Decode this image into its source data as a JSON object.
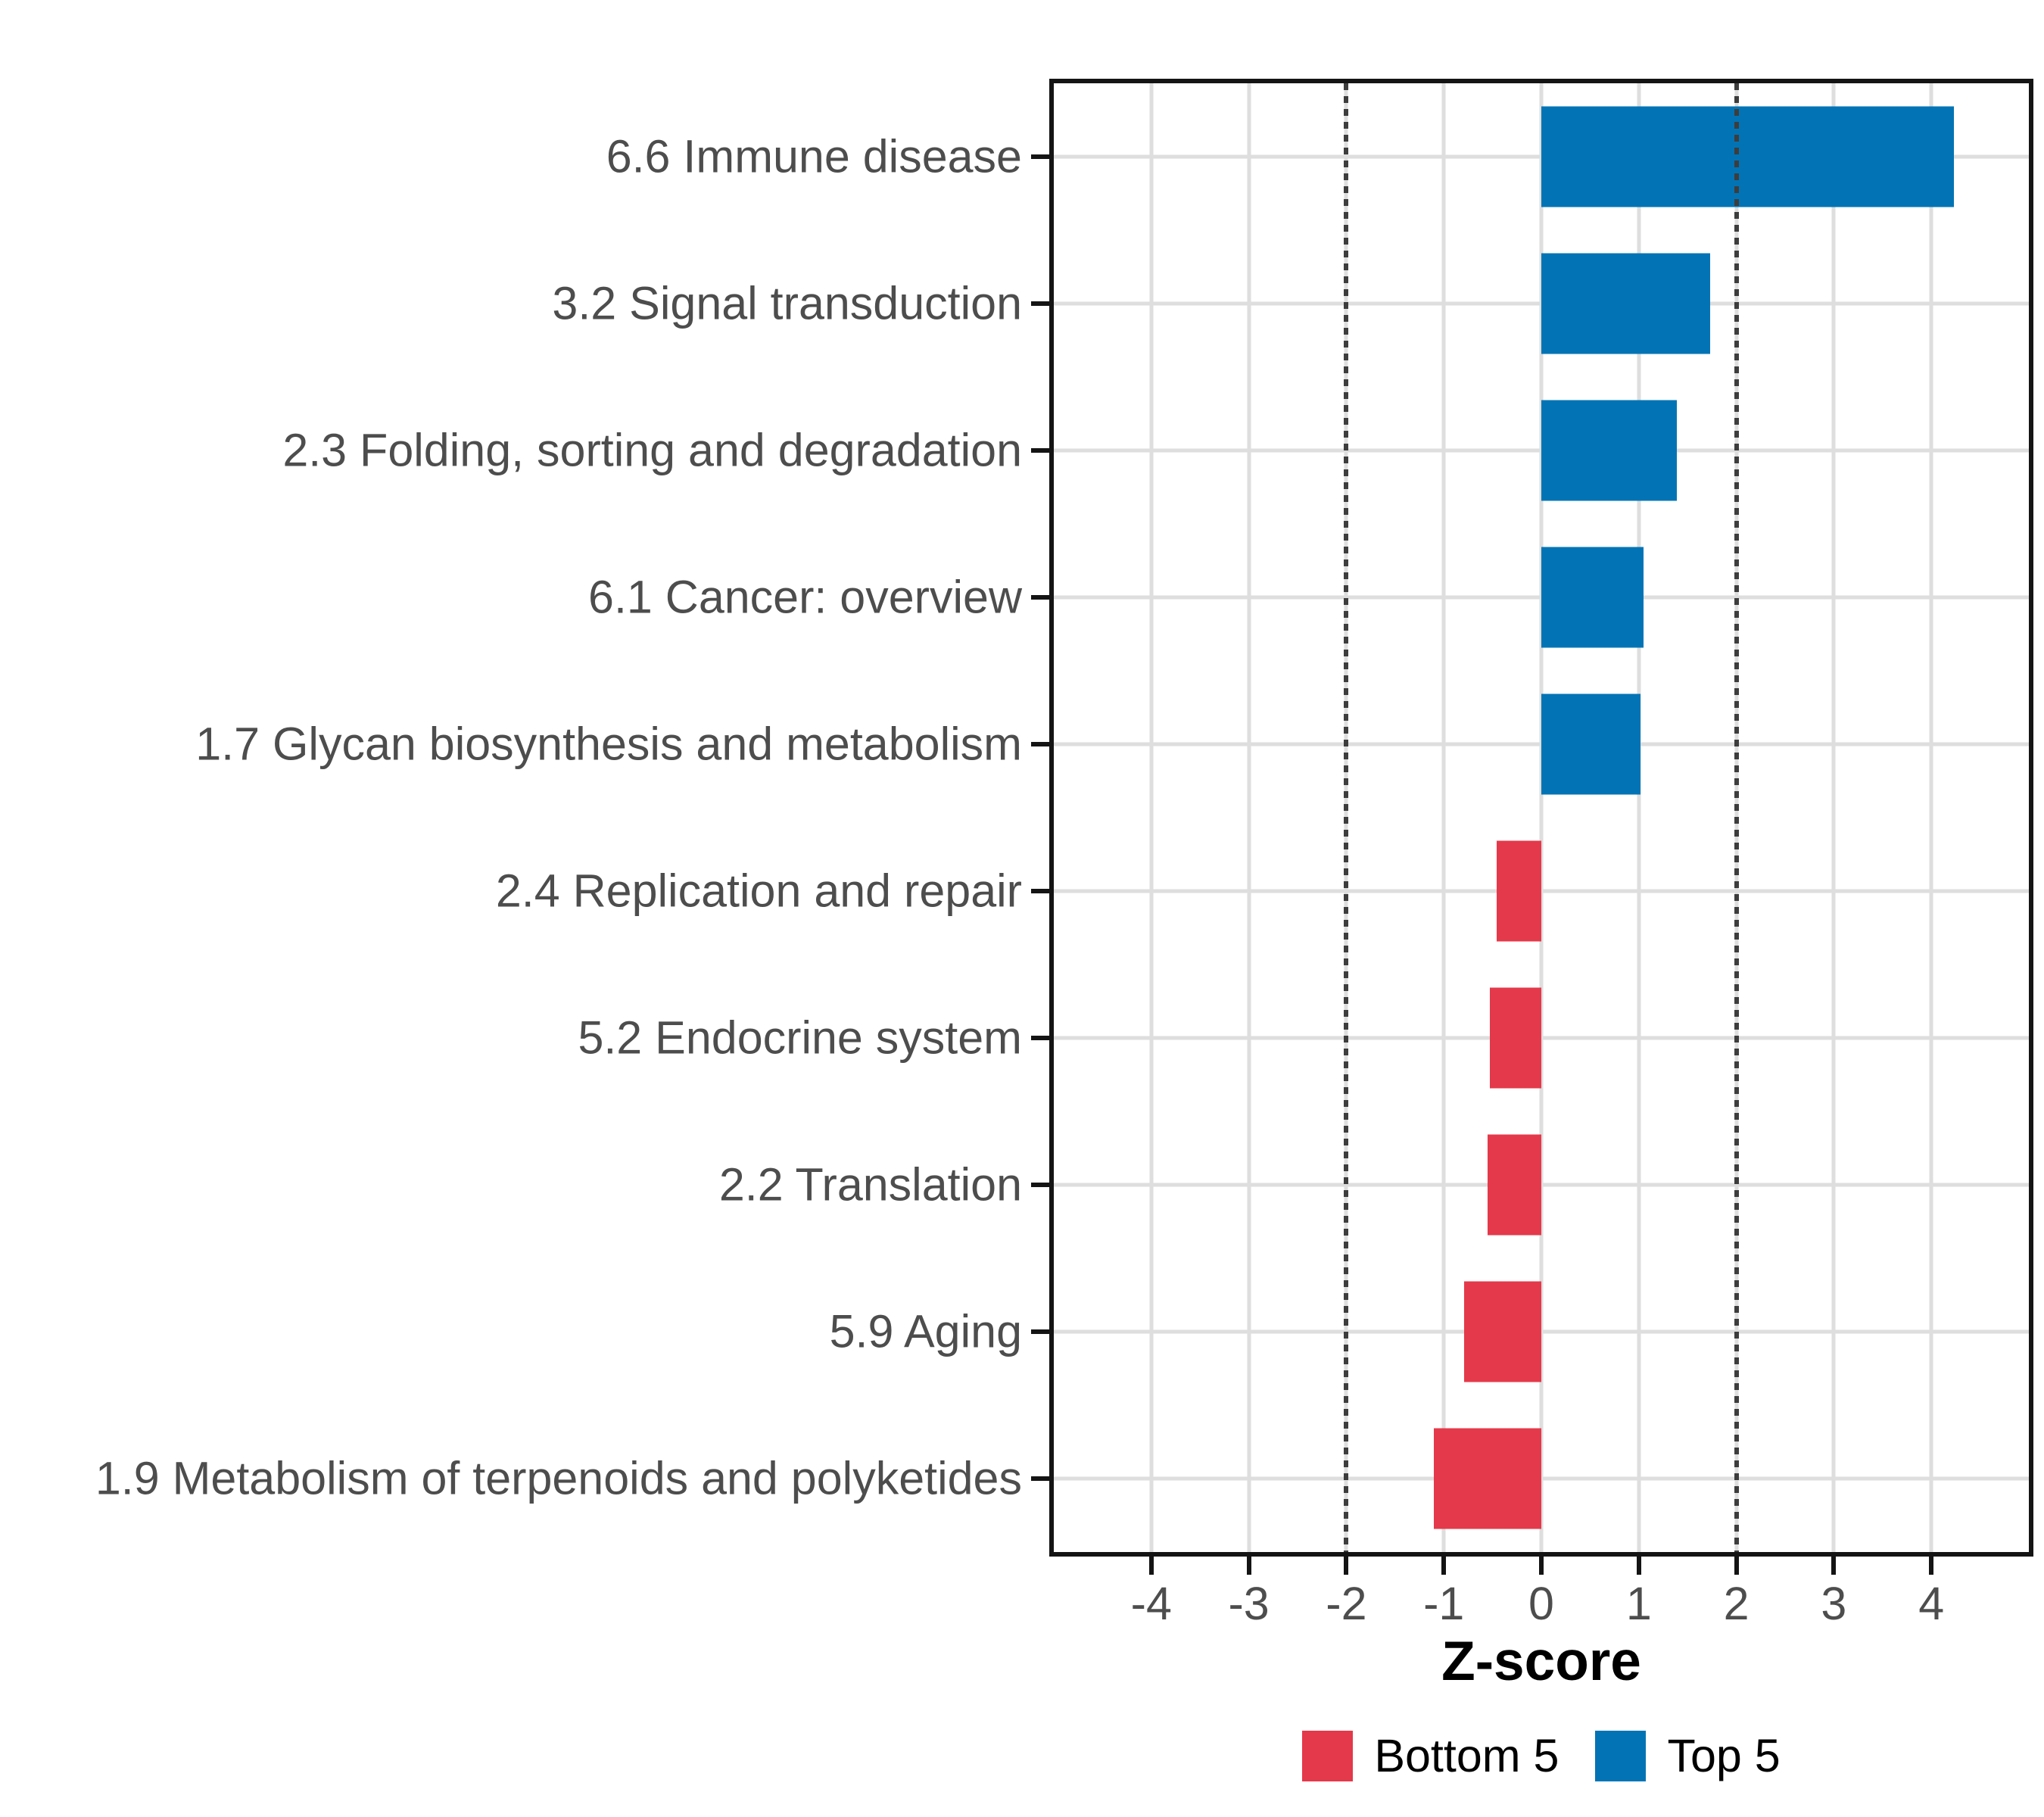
{
  "chart_data": {
    "type": "bar",
    "orientation": "horizontal",
    "title": "",
    "xlabel": "Z-score",
    "ylabel": "",
    "xlim": [
      -5,
      5
    ],
    "x_ticks": [
      -4,
      -3,
      -2,
      -1,
      0,
      1,
      2,
      3,
      4
    ],
    "x_tick_labels": [
      "-4",
      "-3",
      "-2",
      "-1",
      "0",
      "1",
      "2",
      "3",
      "4"
    ],
    "grid": true,
    "reference_lines": {
      "values": [
        -2,
        2
      ],
      "style": "dashed"
    },
    "categories": [
      "6.6 Immune disease",
      "3.2 Signal transduction",
      "2.3 Folding, sorting and degradation",
      "6.1 Cancer: overview",
      "1.7 Glycan biosynthesis and metabolism",
      "2.4 Replication and repair",
      "5.2 Endocrine system",
      "2.2 Translation",
      "5.9 Aging",
      "1.9 Metabolism of terpenoids and polyketides"
    ],
    "values": [
      4.23,
      1.73,
      1.39,
      1.05,
      1.02,
      -0.46,
      -0.53,
      -0.55,
      -0.79,
      -1.1
    ],
    "groups": [
      "Top 5",
      "Top 5",
      "Top 5",
      "Top 5",
      "Top 5",
      "Bottom 5",
      "Bottom 5",
      "Bottom 5",
      "Bottom 5",
      "Bottom 5"
    ],
    "legend": {
      "position": "bottom",
      "items": [
        {
          "label": "Bottom 5",
          "color": "#E4394A"
        },
        {
          "label": "Top 5",
          "color": "#0274B5"
        }
      ]
    }
  },
  "colors": {
    "top5": "#0274B5",
    "bottom5": "#E4394A",
    "gridline": "#DEDEDE",
    "reference_line": "#3D3D3D",
    "panel_border": "#141414",
    "axis_text": "#4D4D4D",
    "title_text": "#000000",
    "background": "#FFFFFF"
  }
}
